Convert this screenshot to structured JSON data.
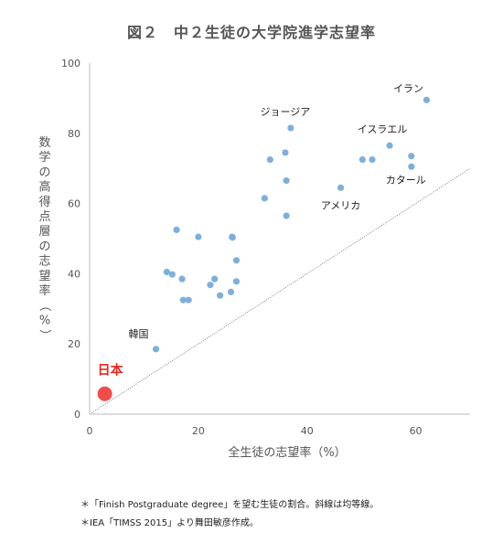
{
  "chart_data": {
    "type": "scatter",
    "title": "図２　中２生徒の大学院進学志望率",
    "xlabel": "全生徒の志望率（%）",
    "ylabel": "数学の高得点層の志望率（%）",
    "xlim": [
      0,
      70
    ],
    "ylim": [
      0,
      100
    ],
    "xticks": [
      0,
      20,
      40,
      60
    ],
    "yticks": [
      0,
      20,
      40,
      60,
      80,
      100
    ],
    "grid": false,
    "reference_line": {
      "label": "均等線",
      "x": [
        0,
        70
      ],
      "y": [
        0,
        70
      ]
    },
    "series": [
      {
        "points": [
          {
            "x": 12.2,
            "y": 18.5,
            "label": "韓国"
          },
          {
            "x": 14.2,
            "y": 40.5
          },
          {
            "x": 15.2,
            "y": 39.8
          },
          {
            "x": 16.0,
            "y": 52.5
          },
          {
            "x": 17.0,
            "y": 38.5
          },
          {
            "x": 17.2,
            "y": 32.5
          },
          {
            "x": 18.2,
            "y": 32.5
          },
          {
            "x": 20.0,
            "y": 50.5
          },
          {
            "x": 22.2,
            "y": 36.8
          },
          {
            "x": 23.0,
            "y": 38.5
          },
          {
            "x": 24.0,
            "y": 33.8
          },
          {
            "x": 26.0,
            "y": 34.8
          },
          {
            "x": 26.2,
            "y": 50.5
          },
          {
            "x": 26.3,
            "y": 50.3
          },
          {
            "x": 27.0,
            "y": 43.8
          },
          {
            "x": 27.0,
            "y": 37.8
          },
          {
            "x": 32.2,
            "y": 61.5
          },
          {
            "x": 33.2,
            "y": 72.5
          },
          {
            "x": 36.0,
            "y": 74.5
          },
          {
            "x": 36.2,
            "y": 66.5
          },
          {
            "x": 36.2,
            "y": 56.5
          },
          {
            "x": 37.0,
            "y": 81.5,
            "label": "ジョージア"
          },
          {
            "x": 46.2,
            "y": 64.5,
            "label": "アメリカ"
          },
          {
            "x": 50.2,
            "y": 72.5
          },
          {
            "x": 52.0,
            "y": 72.5
          },
          {
            "x": 55.2,
            "y": 76.5,
            "label": "イスラエル"
          },
          {
            "x": 59.2,
            "y": 73.5
          },
          {
            "x": 59.2,
            "y": 70.5,
            "label": "カタール"
          },
          {
            "x": 62.0,
            "y": 89.5,
            "label": "イラン"
          }
        ]
      },
      {
        "highlight": true,
        "points": [
          {
            "x": 2.8,
            "y": 5.8,
            "label": "日本"
          }
        ]
      }
    ]
  },
  "colors": {
    "point": "#7fafd9",
    "highlight": "#f04c4c",
    "highlight_label": "#e8261f",
    "axis": "#bdbdbd",
    "reference_line": "#666666",
    "text": "#555555"
  },
  "notes": [
    "＊「Finish Postgraduate degree」を望む生徒の割合。斜線は均等線。",
    "＊IEA「TIMSS 2015」より舞田敏彦作成。"
  ]
}
